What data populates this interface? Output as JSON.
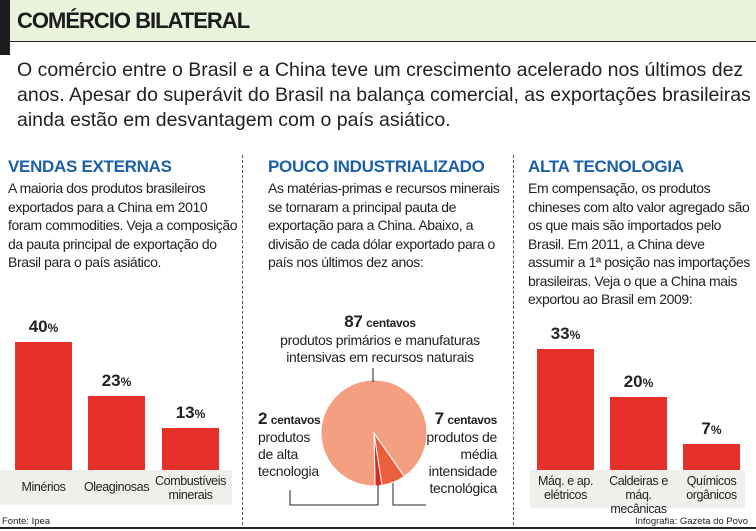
{
  "header": {
    "title": "COMÉRCIO BILATERAL"
  },
  "intro": "O comércio entre o Brasil e a China teve um crescimento acelerado nos últimos dez anos. Apesar do superávit do Brasil na balança comercial, as exportações brasileiras ainda estão em desvantagem com o país asiático.",
  "sections": [
    {
      "heading": "VENDAS EXTERNAS",
      "text": "A maioria dos produtos brasileiros exportados para a China em 2010 foram commodities. Veja a composição da pauta principal de exportação do Brasil para o país asiático."
    },
    {
      "heading": "POUCO INDUSTRIALIZADO",
      "text": "As matérias-primas e recursos minerais se tornaram a principal pauta de exportação para a China. Abaixo, a divisão de cada dólar exportado para o país nos últimos dez anos:"
    },
    {
      "heading": "ALTA TECNOLOGIA",
      "text": "Em compensação, os produtos chineses com alto valor agregado são os que mais são importados pelo Brasil. Em 2011, a China deve assumir a 1ª posição nas importações brasileiras. Veja o que a China mais exportou ao Brasil em 2009:"
    }
  ],
  "chart_data": [
    {
      "type": "bar",
      "title": "VENDAS EXTERNAS",
      "categories": [
        "Minérios",
        "Oleaginosas",
        "Combustíveis minerais"
      ],
      "values": [
        40,
        23,
        13
      ],
      "unit": "%",
      "labels": [
        "40",
        "23",
        "13"
      ]
    },
    {
      "type": "pie",
      "title": "POUCO INDUSTRIALIZADO",
      "unit": "centavos",
      "slices": [
        {
          "value": 87,
          "num": "87",
          "unit": "centavos",
          "label": "produtos primários e manufaturas intensivas em recursos naturais",
          "color": "#f4a080"
        },
        {
          "value": 7,
          "num": "7",
          "unit": "centavos",
          "label": "produtos de média intensidade tecnológica",
          "color": "#ec5f3c"
        },
        {
          "value": 2,
          "num": "2",
          "unit": "centavos",
          "label": "produtos de alta tecnologia",
          "color": "#e2261f"
        }
      ]
    },
    {
      "type": "bar",
      "title": "ALTA TECNOLOGIA",
      "categories": [
        "Máq. e ap. elétricos",
        "Caldeiras e máq. mecânicas",
        "Químicos orgânicos"
      ],
      "values": [
        33,
        20,
        7
      ],
      "unit": "%",
      "labels": [
        "33",
        "20",
        "7"
      ]
    }
  ],
  "footer": {
    "source": "Fonte: Ipea",
    "credit": "Infografia: Gazeta do Povo"
  }
}
